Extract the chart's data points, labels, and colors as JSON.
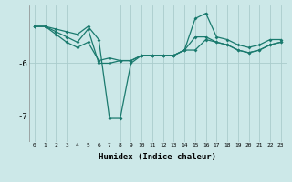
{
  "xlabel": "Humidex (Indice chaleur)",
  "background_color": "#cce8e8",
  "grid_color": "#aacccc",
  "line_color": "#1a7a6e",
  "x": [
    0,
    1,
    2,
    3,
    4,
    5,
    6,
    7,
    8,
    9,
    10,
    11,
    12,
    13,
    14,
    15,
    16,
    17,
    18,
    19,
    20,
    21,
    22,
    23
  ],
  "line1": [
    -5.3,
    -5.3,
    -5.35,
    -5.4,
    -5.45,
    -5.3,
    -5.55,
    -7.05,
    -7.05,
    -6.0,
    -5.85,
    -5.85,
    -5.85,
    -5.85,
    -5.75,
    -5.5,
    -5.5,
    -5.6,
    -5.65,
    -5.75,
    -5.8,
    -5.75,
    -5.65,
    -5.6
  ],
  "line2": [
    -5.3,
    -5.3,
    -5.4,
    -5.5,
    -5.6,
    -5.35,
    -6.0,
    -6.0,
    -5.95,
    -5.95,
    -5.85,
    -5.85,
    -5.85,
    -5.85,
    -5.75,
    -5.15,
    -5.05,
    -5.5,
    -5.55,
    -5.65,
    -5.7,
    -5.65,
    -5.55,
    -5.55
  ],
  "line3": [
    -5.3,
    -5.3,
    -5.45,
    -5.6,
    -5.7,
    -5.6,
    -5.95,
    -5.9,
    -5.95,
    -5.95,
    -5.85,
    -5.85,
    -5.85,
    -5.85,
    -5.75,
    -5.75,
    -5.55,
    -5.6,
    -5.65,
    -5.75,
    -5.8,
    -5.75,
    -5.65,
    -5.6
  ],
  "ylim": [
    -7.5,
    -4.9
  ],
  "yticks": [
    -7,
    -6
  ],
  "xlim": [
    -0.5,
    23.5
  ],
  "figwidth": 3.2,
  "figheight": 2.0,
  "dpi": 100
}
